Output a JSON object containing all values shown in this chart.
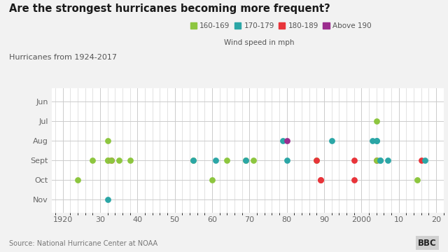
{
  "title": "Are the strongest hurricanes becoming more frequent?",
  "subtitle": "Hurricanes from 1924-2017",
  "legend_title": "Wind speed in mph",
  "source": "Source: National Hurricane Center at NOAA",
  "colors": {
    "160-169": "#8dc63f",
    "170-179": "#2ba6a6",
    "180-189": "#e8343a",
    "Above 190": "#9b2d8e"
  },
  "legend_labels": [
    "160-169",
    "170-179",
    "180-189",
    "Above 190"
  ],
  "background_color": "#f2f2f2",
  "plot_bg": "#ffffff",
  "grid_color": "#cccccc",
  "hurricanes": [
    [
      1924,
      5,
      "160-169"
    ],
    [
      1928,
      4,
      "160-169"
    ],
    [
      1932,
      3,
      "160-169"
    ],
    [
      1932,
      4,
      "160-169"
    ],
    [
      1932,
      4,
      "160-169"
    ],
    [
      1932,
      6,
      "170-179"
    ],
    [
      1933,
      4,
      "180-189"
    ],
    [
      1933,
      4,
      "160-169"
    ],
    [
      1935,
      4,
      "160-169"
    ],
    [
      1938,
      4,
      "160-169"
    ],
    [
      1955,
      4,
      "160-169"
    ],
    [
      1955,
      4,
      "170-179"
    ],
    [
      1960,
      5,
      "160-169"
    ],
    [
      1961,
      4,
      "170-179"
    ],
    [
      1964,
      4,
      "160-169"
    ],
    [
      1969,
      4,
      "160-169"
    ],
    [
      1969,
      4,
      "170-179"
    ],
    [
      1971,
      4,
      "160-169"
    ],
    [
      1979,
      3,
      "170-179"
    ],
    [
      1980,
      3,
      "Above 190"
    ],
    [
      1980,
      4,
      "170-179"
    ],
    [
      1988,
      4,
      "160-169"
    ],
    [
      1988,
      4,
      "180-189"
    ],
    [
      1989,
      5,
      "180-189"
    ],
    [
      1989,
      5,
      "180-189"
    ],
    [
      1992,
      3,
      "170-179"
    ],
    [
      1998,
      5,
      "180-189"
    ],
    [
      1998,
      4,
      "180-189"
    ],
    [
      2003,
      3,
      "170-179"
    ],
    [
      2004,
      2,
      "160-169"
    ],
    [
      2004,
      3,
      "170-179"
    ],
    [
      2004,
      3,
      "170-179"
    ],
    [
      2004,
      4,
      "180-189"
    ],
    [
      2004,
      4,
      "160-169"
    ],
    [
      2005,
      4,
      "170-179"
    ],
    [
      2005,
      4,
      "170-179"
    ],
    [
      2007,
      4,
      "170-179"
    ],
    [
      2015,
      5,
      "160-169"
    ],
    [
      2016,
      4,
      "180-189"
    ],
    [
      2017,
      4,
      "170-179"
    ]
  ]
}
